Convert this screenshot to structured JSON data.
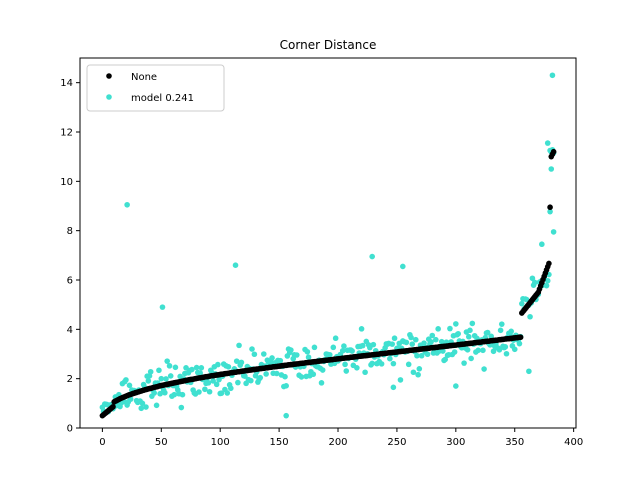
{
  "chart_data": {
    "type": "scatter",
    "title": "Corner Distance",
    "xlabel": "",
    "ylabel": "",
    "xlim": [
      -19,
      402
    ],
    "ylim": [
      0,
      15
    ],
    "xticks": [
      0,
      50,
      100,
      150,
      200,
      250,
      300,
      350,
      400
    ],
    "yticks": [
      0,
      2,
      4,
      6,
      8,
      10,
      12,
      14
    ],
    "grid": false,
    "legend_position": "top-left",
    "series": [
      {
        "name": "None",
        "color": "#000000",
        "points": []
      },
      {
        "name": "model 0.241",
        "color": "#40e0d0",
        "points": []
      }
    ]
  }
}
